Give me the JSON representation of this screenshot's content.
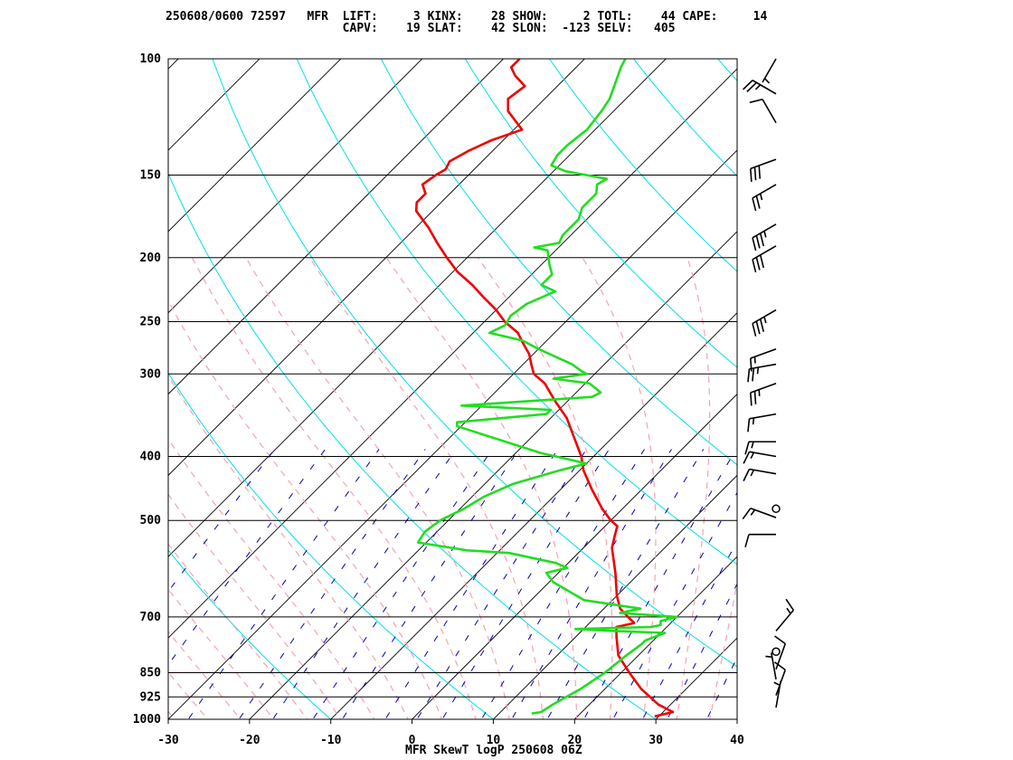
{
  "header": {
    "line1": "250608/0600 72597   MFR  LIFT:     3 KINX:    28 SHOW:     2 TOTL:    44 CAPE:     14",
    "line2": "                         CAPV:    19 SLAT:    42 SLON:  -123 SELV:   405"
  },
  "footer": "MFR SkewT logP 250608 06Z",
  "colors": {
    "temperature": "#ee0000",
    "dewpoint": "#22dd22",
    "dry_adiabat": "#00e0e8",
    "moist_adiabat": "#f4a3b0",
    "mixing_ratio": "#0000bb",
    "isotherm": "#000000",
    "isobar": "#000000"
  },
  "chart_data": {
    "type": "line",
    "title": "",
    "xlabel": "",
    "ylabel": "",
    "x_ticks": [
      "-30",
      "-20",
      "-10",
      "0",
      "10",
      "20",
      "30",
      "40"
    ],
    "xlim": [
      -30,
      40
    ],
    "y_scale": "log",
    "ylim": [
      1000,
      100
    ],
    "y_ticks": [
      "100",
      "150",
      "200",
      "250",
      "300",
      "400",
      "500",
      "700",
      "850",
      "925",
      "1000"
    ],
    "grid": true,
    "series": [
      {
        "color": "temperature",
        "points": [
          [
            990,
            29.5
          ],
          [
            975,
            31.2
          ],
          [
            950,
            28.5
          ],
          [
            900,
            24.5
          ],
          [
            850,
            21.0
          ],
          [
            800,
            17.5
          ],
          [
            750,
            15.0
          ],
          [
            725,
            13.8
          ],
          [
            715,
            15.5
          ],
          [
            700,
            14.0
          ],
          [
            680,
            12.0
          ],
          [
            650,
            10.0
          ],
          [
            600,
            7.0
          ],
          [
            550,
            3.5
          ],
          [
            530,
            2.5
          ],
          [
            510,
            1.5
          ],
          [
            500,
            0.0
          ],
          [
            480,
            -2.5
          ],
          [
            450,
            -6.0
          ],
          [
            420,
            -9.5
          ],
          [
            400,
            -11.5
          ],
          [
            380,
            -14.0
          ],
          [
            350,
            -18.0
          ],
          [
            330,
            -21.5
          ],
          [
            310,
            -25.0
          ],
          [
            300,
            -27.5
          ],
          [
            290,
            -29.0
          ],
          [
            280,
            -30.5
          ],
          [
            270,
            -32.5
          ],
          [
            260,
            -34.5
          ],
          [
            250,
            -37.5
          ],
          [
            240,
            -40.0
          ],
          [
            230,
            -43.0
          ],
          [
            220,
            -46.0
          ],
          [
            210,
            -49.5
          ],
          [
            200,
            -52.5
          ],
          [
            190,
            -55.5
          ],
          [
            180,
            -58.5
          ],
          [
            170,
            -62.0
          ],
          [
            165,
            -63.0
          ],
          [
            160,
            -63.0
          ],
          [
            155,
            -64.5
          ],
          [
            150,
            -64.0
          ],
          [
            147,
            -63.5
          ],
          [
            143,
            -64.0
          ],
          [
            138,
            -63.0
          ],
          [
            133,
            -61.5
          ],
          [
            128,
            -59.0
          ],
          [
            120,
            -63.0
          ],
          [
            115,
            -64.5
          ],
          [
            110,
            -64.0
          ],
          [
            106,
            -66.5
          ],
          [
            103,
            -68.0
          ],
          [
            100,
            -68.0
          ]
        ]
      },
      {
        "color": "dewpoint",
        "points": [
          [
            980,
            14.0
          ],
          [
            975,
            15.0
          ],
          [
            950,
            15.5
          ],
          [
            900,
            17.0
          ],
          [
            850,
            18.0
          ],
          [
            800,
            18.5
          ],
          [
            770,
            19.0
          ],
          [
            760,
            19.0
          ],
          [
            740,
            20.5
          ],
          [
            735,
            14.0
          ],
          [
            730,
            9.0
          ],
          [
            725,
            18.0
          ],
          [
            720,
            19.0
          ],
          [
            710,
            18.5
          ],
          [
            700,
            20.0
          ],
          [
            690,
            12.5
          ],
          [
            680,
            14.5
          ],
          [
            660,
            6.5
          ],
          [
            620,
            0.5
          ],
          [
            600,
            -1.5
          ],
          [
            590,
            0.5
          ],
          [
            580,
            -1.5
          ],
          [
            560,
            -8.5
          ],
          [
            555,
            -14.0
          ],
          [
            540,
            -21.0
          ],
          [
            520,
            -21.5
          ],
          [
            500,
            -21.0
          ],
          [
            480,
            -19.5
          ],
          [
            460,
            -18.5
          ],
          [
            440,
            -16.5
          ],
          [
            420,
            -12.5
          ],
          [
            410,
            -10.0
          ],
          [
            395,
            -17.0
          ],
          [
            360,
            -30.5
          ],
          [
            355,
            -31.0
          ],
          [
            345,
            -21.0
          ],
          [
            340,
            -21.0
          ],
          [
            335,
            -32.5
          ],
          [
            325,
            -17.5
          ],
          [
            320,
            -17.0
          ],
          [
            310,
            -19.5
          ],
          [
            305,
            -24.5
          ],
          [
            300,
            -21.0
          ],
          [
            297,
            -22.0
          ],
          [
            290,
            -24.0
          ],
          [
            275,
            -30.0
          ],
          [
            267,
            -33.0
          ],
          [
            260,
            -38.0
          ],
          [
            253,
            -37.0
          ],
          [
            245,
            -37.5
          ],
          [
            235,
            -37.0
          ],
          [
            225,
            -35.0
          ],
          [
            220,
            -37.5
          ],
          [
            212,
            -37.5
          ],
          [
            205,
            -39.0
          ],
          [
            200,
            -40.0
          ],
          [
            195,
            -41.0
          ],
          [
            193,
            -43.0
          ],
          [
            190,
            -40.5
          ],
          [
            185,
            -41.0
          ],
          [
            175,
            -41.0
          ],
          [
            168,
            -42.0
          ],
          [
            160,
            -42.0
          ],
          [
            155,
            -43.0
          ],
          [
            152,
            -42.5
          ],
          [
            148,
            -48.5
          ],
          [
            145,
            -51.0
          ],
          [
            140,
            -51.5
          ],
          [
            135,
            -51.5
          ],
          [
            128,
            -51.0
          ],
          [
            120,
            -51.5
          ],
          [
            115,
            -52.0
          ],
          [
            110,
            -53.0
          ],
          [
            103,
            -54.5
          ],
          [
            100,
            -55.0
          ]
        ]
      }
    ],
    "wind_barbs": [
      {
        "p": 100,
        "dir": 210,
        "spd": 5
      },
      {
        "p": 113,
        "dir": 300,
        "spd": 25
      },
      {
        "p": 125,
        "dir": 330,
        "spd": 10
      },
      {
        "p": 142,
        "dir": 250,
        "spd": 30
      },
      {
        "p": 155,
        "dir": 240,
        "spd": 25
      },
      {
        "p": 178,
        "dir": 240,
        "spd": 35
      },
      {
        "p": 192,
        "dir": 240,
        "spd": 30
      },
      {
        "p": 240,
        "dir": 240,
        "spd": 35
      },
      {
        "p": 275,
        "dir": 250,
        "spd": 15
      },
      {
        "p": 290,
        "dir": 260,
        "spd": 25
      },
      {
        "p": 310,
        "dir": 250,
        "spd": 25
      },
      {
        "p": 345,
        "dir": 260,
        "spd": 15
      },
      {
        "p": 380,
        "dir": 270,
        "spd": 15
      },
      {
        "p": 400,
        "dir": 280,
        "spd": 15
      },
      {
        "p": 425,
        "dir": 280,
        "spd": 15
      },
      {
        "p": 480,
        "dir": 0,
        "spd": 0
      },
      {
        "p": 495,
        "dir": 290,
        "spd": 15
      },
      {
        "p": 525,
        "dir": 270,
        "spd": 10
      },
      {
        "p": 735,
        "dir": 40,
        "spd": 15
      },
      {
        "p": 790,
        "dir": 0,
        "spd": 0
      },
      {
        "p": 840,
        "dir": 20,
        "spd": 10
      },
      {
        "p": 870,
        "dir": 350,
        "spd": 5
      },
      {
        "p": 920,
        "dir": 20,
        "spd": 10
      },
      {
        "p": 960,
        "dir": 10,
        "spd": 5
      }
    ]
  }
}
